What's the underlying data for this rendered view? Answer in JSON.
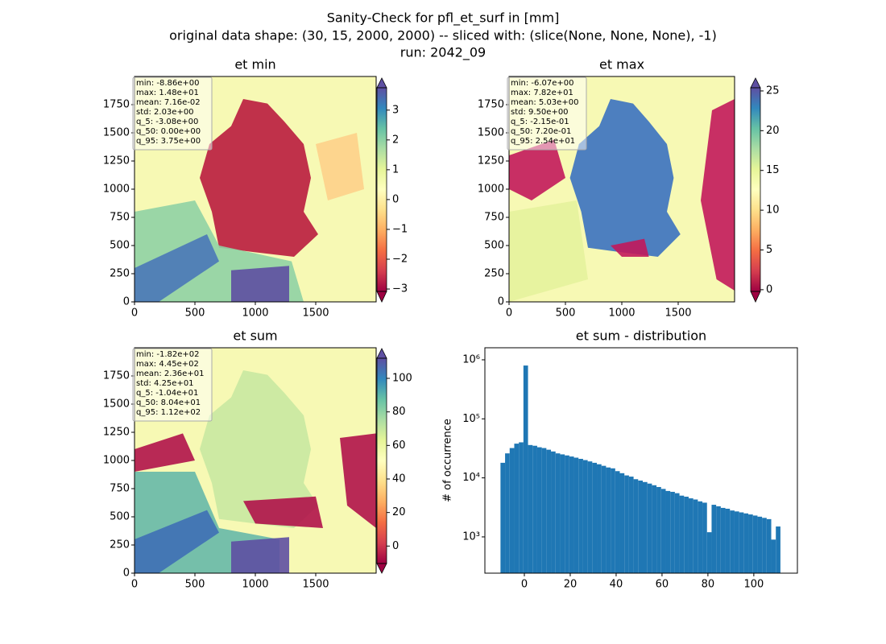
{
  "suptitle": [
    "Sanity-Check for pfl_et_surf in [mm]",
    "original data shape: (30, 15, 2000, 2000) -- sliced with: (slice(None, None, None), -1)",
    "run: 2042_09"
  ],
  "chart_data": [
    {
      "type": "heatmap",
      "title": "et min",
      "stats": [
        "min: -8.86e+00",
        "max: 1.48e+01",
        "mean: 7.16e-02",
        "std: 2.03e+00",
        "q_5: -3.08e+00",
        "q_50: 0.00e+00",
        "q_95: 3.75e+00"
      ],
      "xlim": [
        0,
        2000
      ],
      "ylim": [
        0,
        2000
      ],
      "xticks": [
        0,
        500,
        1000,
        1500
      ],
      "yticks": [
        0,
        250,
        500,
        750,
        1000,
        1250,
        1500,
        1750
      ],
      "clim": [
        -3.08,
        3.75
      ],
      "cticks": [
        {
          "value": -3,
          "label": "−3"
        },
        {
          "value": -2,
          "label": "−2"
        },
        {
          "value": -1,
          "label": "−1"
        },
        0,
        1,
        2,
        3
      ],
      "colormap": "Spectral"
    },
    {
      "type": "heatmap",
      "title": "et max",
      "stats": [
        "min: -6.07e+00",
        "max: 7.82e+01",
        "mean: 5.03e+00",
        "std: 9.50e+00",
        "q_5: -2.15e-01",
        "q_50: 7.20e-01",
        "q_95: 2.54e+01"
      ],
      "xlim": [
        0,
        2000
      ],
      "ylim": [
        0,
        2000
      ],
      "xticks": [
        0,
        500,
        1000,
        1500
      ],
      "yticks": [
        0,
        250,
        500,
        750,
        1000,
        1250,
        1500,
        1750
      ],
      "clim": [
        -0.215,
        25.4
      ],
      "cticks": [
        0,
        5,
        10,
        15,
        20,
        25
      ],
      "colormap": "Spectral"
    },
    {
      "type": "heatmap",
      "title": "et sum",
      "stats": [
        "min: -1.82e+02",
        "max: 4.45e+02",
        "mean: 2.36e+01",
        "std: 4.25e+01",
        "q_5: -1.04e+01",
        "q_50: 8.04e+01",
        "q_95: 1.12e+02"
      ],
      "xlim": [
        0,
        2000
      ],
      "ylim": [
        0,
        2000
      ],
      "xticks": [
        0,
        500,
        1000,
        1500
      ],
      "yticks": [
        0,
        250,
        500,
        750,
        1000,
        1250,
        1500,
        1750
      ],
      "clim": [
        -10.4,
        112
      ],
      "cticks": [
        0,
        20,
        40,
        60,
        80,
        100
      ],
      "colormap": "Spectral"
    },
    {
      "type": "histogram",
      "title": "et sum - distribution",
      "ylabel": "# of occurrence",
      "color": "#1f77b4",
      "log_y": true,
      "xlim": [
        -17.2,
        119
      ],
      "ylim": [
        243,
        1600000
      ],
      "xticks": [
        0,
        20,
        40,
        60,
        80,
        100
      ],
      "yticks": [
        {
          "value": 1000,
          "label": "10³"
        },
        {
          "value": 10000,
          "label": "10⁴"
        },
        {
          "value": 100000,
          "label": "10⁵"
        },
        {
          "value": 1000000,
          "label": "10⁶"
        }
      ],
      "bins": [
        -10.4,
        -8.4,
        -6.4,
        -4.4,
        -2.4,
        -0.4,
        1.6,
        3.6,
        5.6,
        7.6,
        9.6,
        11.6,
        13.6,
        15.6,
        17.6,
        19.6,
        21.6,
        23.6,
        25.6,
        27.6,
        29.6,
        31.6,
        33.6,
        35.6,
        37.6,
        39.6,
        41.6,
        43.6,
        45.6,
        47.6,
        49.6,
        51.6,
        53.6,
        55.6,
        57.6,
        59.6,
        61.6,
        63.6,
        65.6,
        67.6,
        69.6,
        71.6,
        73.6,
        75.6,
        77.6,
        79.6,
        81.6,
        83.6,
        85.6,
        87.6,
        89.6,
        91.6,
        93.6,
        95.6,
        97.6,
        99.6,
        101.6,
        103.6,
        105.6,
        107.6,
        109.6,
        111.6
      ],
      "counts": [
        18000,
        26000,
        32000,
        38000,
        40000,
        800000,
        36000,
        35000,
        33000,
        32000,
        30000,
        28000,
        26000,
        25000,
        24000,
        23000,
        22000,
        21000,
        20000,
        19000,
        18000,
        17000,
        16000,
        15000,
        14500,
        13000,
        12000,
        11000,
        10500,
        9500,
        9000,
        8500,
        8000,
        7500,
        7000,
        6500,
        6000,
        5800,
        5500,
        5000,
        4800,
        4500,
        4300,
        4000,
        3800,
        1200,
        3500,
        3300,
        3100,
        3000,
        2800,
        2700,
        2600,
        2500,
        2400,
        2300,
        2200,
        2100,
        2000,
        900,
        1500
      ]
    }
  ]
}
